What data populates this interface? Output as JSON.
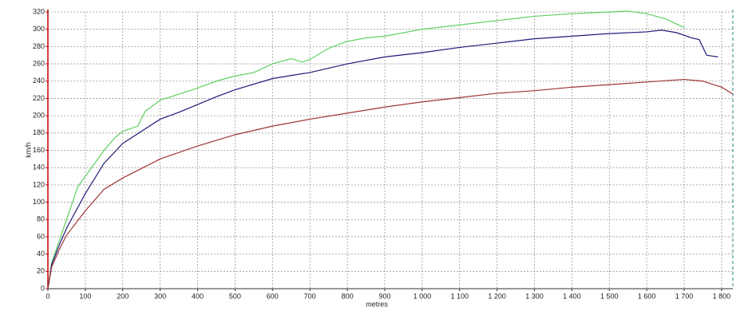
{
  "chart_data": {
    "type": "line",
    "x_label": "metres",
    "y_label": "km/h",
    "xlim": [
      0,
      1830
    ],
    "ylim": [
      0,
      320
    ],
    "xticks": [
      0,
      100,
      200,
      300,
      400,
      500,
      600,
      700,
      800,
      900,
      {
        "value": 1000,
        "label": "1 000"
      },
      {
        "value": 1100,
        "label": "1 100"
      },
      {
        "value": 1200,
        "label": "1 200"
      },
      {
        "value": 1300,
        "label": "1 300"
      },
      {
        "value": 1400,
        "label": "1 400"
      },
      {
        "value": 1500,
        "label": "1 500"
      },
      {
        "value": 1600,
        "label": "1 600"
      },
      {
        "value": 1700,
        "label": "1 700"
      },
      {
        "value": 1800,
        "label": "1 800"
      }
    ],
    "yticks": [
      0,
      20,
      40,
      60,
      80,
      100,
      120,
      140,
      160,
      180,
      200,
      220,
      240,
      260,
      280,
      300,
      320
    ],
    "grid": true,
    "series": [
      {
        "color": "#5fd05f",
        "x": [
          0,
          10,
          30,
          50,
          80,
          100,
          150,
          180,
          200,
          240,
          260,
          300,
          350,
          400,
          450,
          500,
          550,
          600,
          650,
          680,
          700,
          750,
          800,
          850,
          900,
          1000,
          1100,
          1200,
          1300,
          1400,
          1500,
          1550,
          1600,
          1650,
          1700
        ],
        "values": [
          0,
          30,
          55,
          80,
          118,
          130,
          160,
          175,
          182,
          188,
          205,
          218,
          225,
          232,
          240,
          246,
          250,
          260,
          266,
          262,
          265,
          278,
          286,
          290,
          292,
          300,
          305,
          310,
          315,
          318,
          320,
          321,
          318,
          312,
          302
        ]
      },
      {
        "color": "#1c1c78",
        "x": [
          0,
          10,
          30,
          50,
          100,
          150,
          200,
          250,
          300,
          350,
          400,
          450,
          500,
          600,
          700,
          800,
          900,
          1000,
          1100,
          1200,
          1300,
          1400,
          1500,
          1600,
          1640,
          1680,
          1720,
          1740,
          1760,
          1790
        ],
        "values": [
          0,
          28,
          50,
          70,
          110,
          145,
          168,
          182,
          196,
          204,
          213,
          222,
          230,
          243,
          250,
          260,
          268,
          273,
          279,
          284,
          289,
          292,
          295,
          297,
          299,
          296,
          290,
          288,
          270,
          268
        ]
      },
      {
        "color": "#a03434",
        "x": [
          0,
          10,
          30,
          50,
          100,
          150,
          200,
          300,
          400,
          500,
          600,
          700,
          800,
          900,
          1000,
          1100,
          1200,
          1300,
          1400,
          1500,
          1600,
          1700,
          1750,
          1800,
          1830
        ],
        "values": [
          0,
          25,
          45,
          62,
          90,
          115,
          128,
          150,
          165,
          178,
          188,
          196,
          203,
          210,
          216,
          221,
          226,
          229,
          233,
          236,
          239,
          242,
          240,
          233,
          225
        ]
      }
    ]
  }
}
